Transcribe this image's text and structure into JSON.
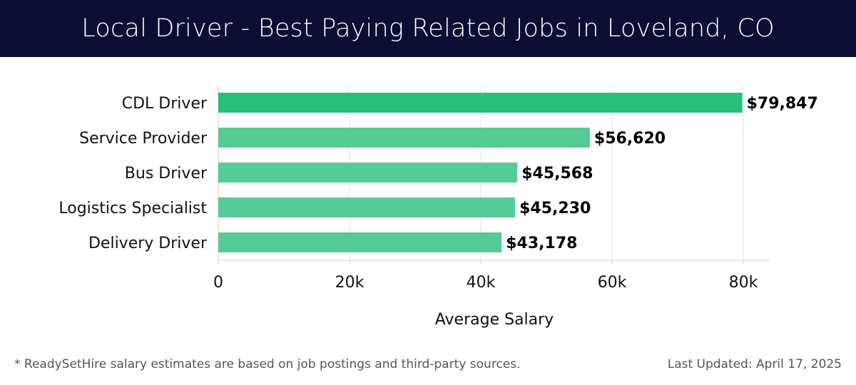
{
  "header": {
    "title": "Local Driver - Best Paying Related Jobs in Loveland, CO"
  },
  "chart_data": {
    "type": "bar",
    "orientation": "horizontal",
    "title": "Local Driver - Best Paying Related Jobs in Loveland, CO",
    "xlabel": "Average Salary",
    "ylabel": "",
    "categories": [
      "CDL Driver",
      "Service Provider",
      "Bus Driver",
      "Logistics Specialist",
      "Delivery Driver"
    ],
    "values": [
      79847,
      56620,
      45568,
      45230,
      43178
    ],
    "value_labels": [
      "$79,847",
      "$56,620",
      "$45,568",
      "$45,230",
      "$43,178"
    ],
    "xlim": [
      0,
      84000
    ],
    "x_ticks": [
      0,
      20000,
      40000,
      60000,
      80000
    ],
    "x_tick_labels": [
      "0",
      "20k",
      "40k",
      "60k",
      "80k"
    ],
    "grid": true,
    "colors": {
      "top_bar": "#28c07a",
      "bar": "#55cc95",
      "grid": "#e3e3e3",
      "axis": "#cccccc"
    }
  },
  "footer": {
    "note": "* ReadySetHire salary estimates are based on job postings and third-party sources.",
    "updated": "Last Updated: April 17, 2025"
  }
}
